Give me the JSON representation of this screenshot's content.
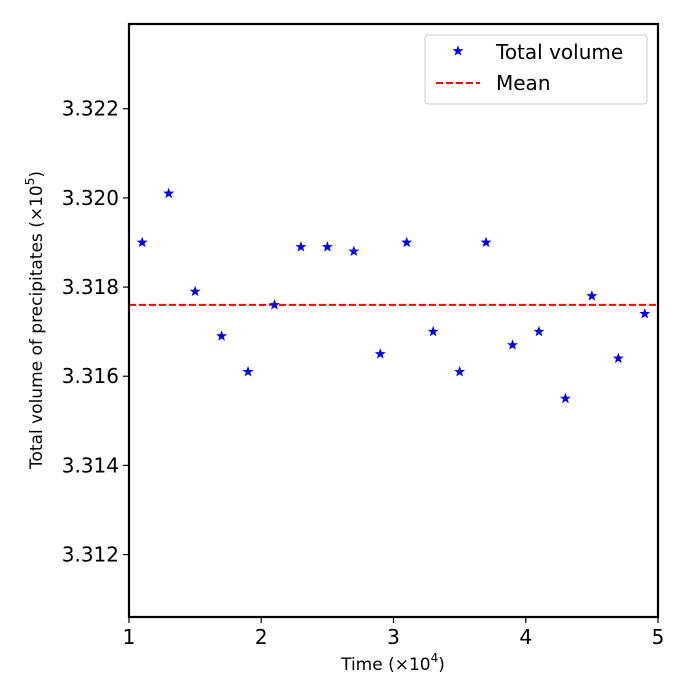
{
  "chart_data": {
    "type": "scatter",
    "xlabel": "Time (×10",
    "xlabel_exp": "4",
    "xlabel_close": ")",
    "ylabel": "Total volume of precipitates (×10",
    "ylabel_exp": "5",
    "ylabel_close": ")",
    "xlim": [
      1,
      5
    ],
    "ylim": [
      3.3106,
      3.3239
    ],
    "x_ticks": [
      1,
      2,
      3,
      4,
      5
    ],
    "x_tick_labels": [
      "1",
      "2",
      "3",
      "4",
      "5"
    ],
    "y_ticks": [
      3.312,
      3.314,
      3.316,
      3.318,
      3.32,
      3.322
    ],
    "y_tick_labels": [
      "3.312",
      "3.314",
      "3.316",
      "3.318",
      "3.320",
      "3.322"
    ],
    "grid": false,
    "legend_position": "top-right",
    "series": [
      {
        "name": "Total volume",
        "marker": "star",
        "color": "#0000ff",
        "x": [
          1.1,
          1.3,
          1.5,
          1.7,
          1.9,
          2.1,
          2.3,
          2.5,
          2.7,
          2.9,
          3.1,
          3.3,
          3.5,
          3.7,
          3.9,
          4.1,
          4.3,
          4.5,
          4.7,
          4.9
        ],
        "y": [
          3.319,
          3.3201,
          3.3179,
          3.3169,
          3.3161,
          3.3176,
          3.3189,
          3.3189,
          3.3188,
          3.3165,
          3.319,
          3.317,
          3.3161,
          3.319,
          3.3167,
          3.317,
          3.3155,
          3.3178,
          3.3164,
          3.3174
        ]
      },
      {
        "name": "Mean",
        "style": "dashed-line",
        "color": "#ff0000",
        "y": 3.3176
      }
    ]
  }
}
